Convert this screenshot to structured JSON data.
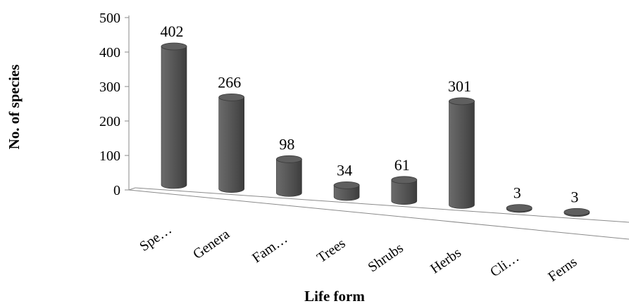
{
  "chart_data": {
    "type": "bar",
    "style": "3d-cylinder",
    "categories": [
      "Spe…",
      "Genera",
      "Fam…",
      "Trees",
      "Shrubs",
      "Herbs",
      "Cli…",
      "Ferns"
    ],
    "values": [
      402,
      266,
      98,
      34,
      61,
      301,
      3,
      3
    ],
    "data_labels": [
      "402",
      "266",
      "98",
      "34",
      "61",
      "301",
      "3",
      "3"
    ],
    "xlabel": "Life form",
    "ylabel": "No. of species",
    "ylim": [
      0,
      500
    ],
    "yticks": [
      "0",
      "100",
      "200",
      "300",
      "400",
      "500"
    ],
    "grid": false,
    "legend": "none",
    "bar_color": "#5f5f5f"
  }
}
